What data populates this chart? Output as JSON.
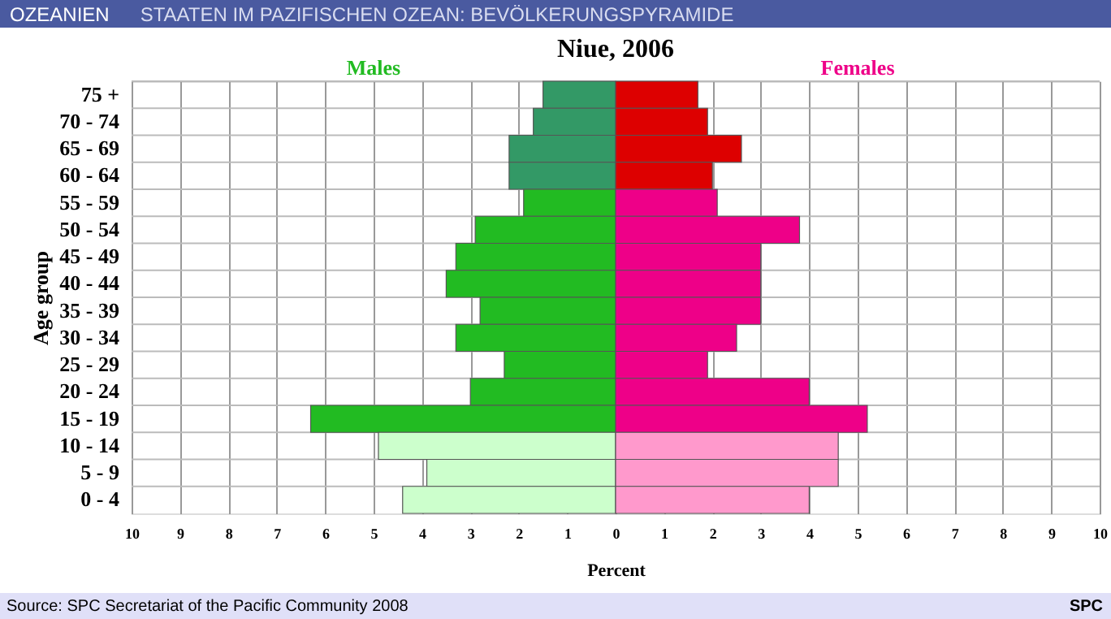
{
  "chart_data": {
    "type": "bar",
    "orientation": "horizontal",
    "title": "Niue, 2006",
    "xlabel": "Percent",
    "ylabel": "Age group",
    "categories": [
      "75 +",
      "70 - 74",
      "65 - 69",
      "60 - 64",
      "55 - 59",
      "50 - 54",
      "45 - 49",
      "40 - 44",
      "35 - 39",
      "30 - 34",
      "25 - 29",
      "20 - 24",
      "15 - 19",
      "10 - 14",
      "5 - 9",
      "0 - 4"
    ],
    "series": [
      {
        "name": "Males",
        "values": [
          -1.5,
          -1.7,
          -2.2,
          -2.2,
          -1.9,
          -2.9,
          -3.3,
          -3.5,
          -2.8,
          -3.3,
          -2.3,
          -3.0,
          -6.3,
          -4.9,
          -3.9,
          -4.4
        ],
        "colors": [
          "#339966",
          "#339966",
          "#339966",
          "#339966",
          "#22bb22",
          "#22bb22",
          "#22bb22",
          "#22bb22",
          "#22bb22",
          "#22bb22",
          "#22bb22",
          "#22bb22",
          "#22bb22",
          "#ccffcc",
          "#ccffcc",
          "#ccffcc"
        ]
      },
      {
        "name": "Females",
        "values": [
          1.7,
          1.9,
          2.6,
          2.0,
          2.1,
          3.8,
          3.0,
          3.0,
          3.0,
          2.5,
          1.9,
          4.0,
          5.2,
          4.6,
          4.6,
          4.0
        ],
        "colors": [
          "#dd0000",
          "#dd0000",
          "#dd0000",
          "#dd0000",
          "#ee0088",
          "#ee0088",
          "#ee0088",
          "#ee0088",
          "#ee0088",
          "#ee0088",
          "#ee0088",
          "#ee0088",
          "#ee0088",
          "#ff99cc",
          "#ff99cc",
          "#ff99cc"
        ]
      }
    ],
    "xlim": [
      -10,
      10
    ],
    "xticks": [
      {
        "value": -10,
        "label": "10"
      },
      {
        "value": -9,
        "label": "9"
      },
      {
        "value": -8,
        "label": "8"
      },
      {
        "value": -7,
        "label": "7"
      },
      {
        "value": -6,
        "label": "6"
      },
      {
        "value": -5,
        "label": "5"
      },
      {
        "value": -4,
        "label": "4"
      },
      {
        "value": -3,
        "label": "3"
      },
      {
        "value": -2,
        "label": "2"
      },
      {
        "value": -1,
        "label": "1"
      },
      0,
      1,
      2,
      3,
      4,
      5,
      6,
      7,
      8,
      9,
      10
    ],
    "grid": true,
    "stacked": true,
    "annotations": [
      "OZEANIEN",
      "STAATEN IM PAZIFISCHEN OZEAN: BEVÖLKERUNGSPYRAMIDE",
      "Source: SPC Secretariat of the Pacific Community 2008",
      "SPC"
    ]
  }
}
